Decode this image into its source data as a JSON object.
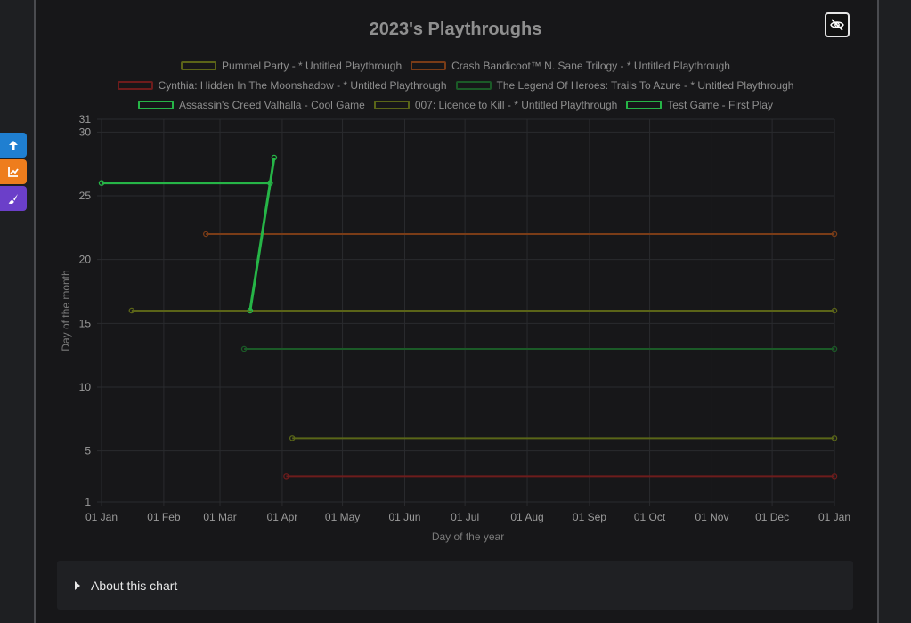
{
  "colors": {
    "background": "#171719",
    "grid": "#2a2b2e",
    "axis_text": "#9a9a9a",
    "side_up": "#1f7fd1",
    "side_chart": "#ee7d1d",
    "side_theme": "#6b3fc9"
  },
  "side_buttons": [
    {
      "icon": "arrow-up-icon"
    },
    {
      "icon": "line-chart-icon"
    },
    {
      "icon": "paint-brush-icon"
    }
  ],
  "toggle_button": {
    "icon": "eye-slash-icon"
  },
  "about": {
    "label": "About this chart",
    "icon": "caret-right-icon"
  },
  "chart_data": {
    "type": "line",
    "title": "2023's Playthroughs",
    "xlabel": "Day of the year",
    "ylabel": "Day of the month",
    "x_ticks": [
      "01 Jan",
      "01 Feb",
      "01 Mar",
      "01 Apr",
      "01 May",
      "01 Jun",
      "01 Jul",
      "01 Aug",
      "01 Sep",
      "01 Oct",
      "01 Nov",
      "01 Dec",
      "01 Jan"
    ],
    "y_ticks": [
      1,
      5,
      10,
      15,
      20,
      25,
      30,
      31
    ],
    "xlim": [
      "2023-01-01",
      "2024-01-01"
    ],
    "ylim": [
      1,
      31
    ],
    "grid": true,
    "legend_position": "top",
    "series": [
      {
        "name": "Pummel Party - * Untitled Playthrough",
        "color": "#5b6418",
        "line_width": 2,
        "points": [
          [
            "2023-01-16",
            16
          ],
          [
            "2024-01-01",
            16
          ]
        ]
      },
      {
        "name": "Crash Bandicoot™ N. Sane Trilogy - * Untitled Playthrough",
        "color": "#7a3c17",
        "line_width": 2,
        "points": [
          [
            "2023-02-22",
            22
          ],
          [
            "2024-01-01",
            22
          ]
        ]
      },
      {
        "name": "Cynthia: Hidden In The Moonshadow - * Untitled Playthrough",
        "color": "#6e1c1c",
        "line_width": 2,
        "points": [
          [
            "2023-04-03",
            3
          ],
          [
            "2024-01-01",
            3
          ]
        ]
      },
      {
        "name": "The Legend Of Heroes: Trails To Azure - * Untitled Playthrough",
        "color": "#1b5a27",
        "line_width": 2,
        "points": [
          [
            "2023-03-13",
            13
          ],
          [
            "2024-01-01",
            13
          ]
        ]
      },
      {
        "name": "Assassin's Creed Valhalla - Cool Game",
        "color": "#26b547",
        "line_width": 3,
        "points": [
          [
            "2023-01-01",
            26
          ],
          [
            "2023-03-26",
            26
          ]
        ]
      },
      {
        "name": "007: Licence to Kill - * Untitled Playthrough",
        "color": "#5a6618",
        "line_width": 2,
        "points": [
          [
            "2023-04-06",
            6
          ],
          [
            "2024-01-01",
            6
          ]
        ]
      },
      {
        "name": "Test Game - First Play",
        "color": "#26b547",
        "line_width": 3,
        "points": [
          [
            "2023-03-16",
            16
          ],
          [
            "2023-03-28",
            28
          ]
        ]
      }
    ],
    "legend_rows": [
      [
        0,
        1
      ],
      [
        2,
        3
      ],
      [
        4,
        5,
        6
      ]
    ]
  }
}
